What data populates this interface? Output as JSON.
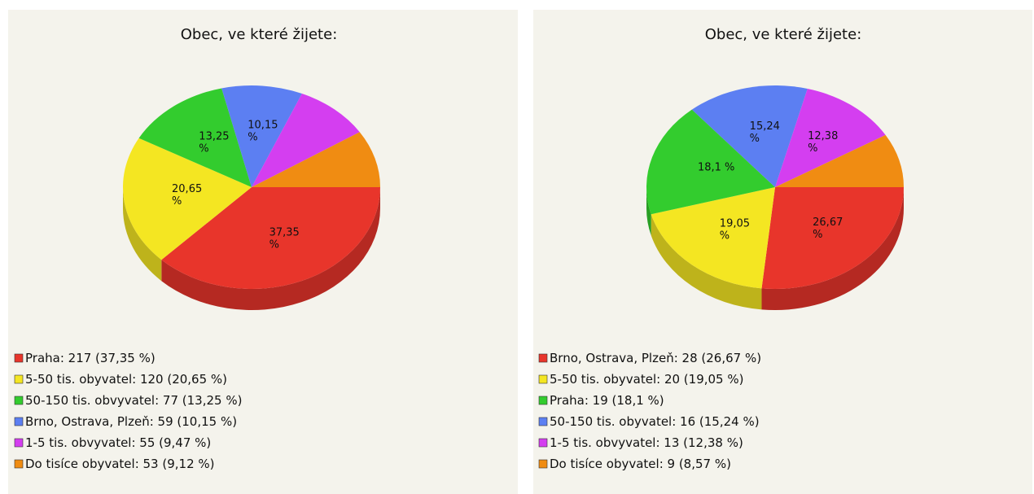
{
  "chart_data": [
    {
      "type": "pie",
      "title": "Obec, ve které žijete:",
      "categories": [
        "Praha",
        "5-50 tis. obyvatel",
        "50-150 tis. obvyvatel",
        "Brno, Ostrava, Plzeň",
        "1-5 tis. obvyvatel",
        "Do tisíce obyvatel"
      ],
      "values": [
        37.35,
        20.65,
        13.25,
        10.15,
        9.47,
        9.12
      ],
      "value_labels": [
        "37,35 %",
        "20,65 %",
        "13,25 %",
        "10,15 %",
        null,
        null
      ],
      "legend_labels": [
        "Praha: 217 (37,35 %)",
        "5-50 tis. obyvatel: 120 (20,65 %)",
        "50-150 tis. obvyvatel: 77 (13,25 %)",
        "Brno, Ostrava, Plzeň: 59 (10,15 %)",
        "1-5 tis. obvyvatel: 55 (9,47 %)",
        "Do tisíce obyvatel: 53 (9,12 %)"
      ],
      "colors": [
        "#e8352b",
        "#f4e622",
        "#33cc2e",
        "#5c7ff2",
        "#d43ef0",
        "#f08c12"
      ]
    },
    {
      "type": "pie",
      "title": "Obec, ve které žijete:",
      "categories": [
        "Brno, Ostrava, Plzeň",
        "5-50 tis. obyvatel",
        "Praha",
        "50-150 tis. obyvatel",
        "1-5 tis. obvyvatel",
        "Do tisíce obyvatel"
      ],
      "values": [
        26.67,
        19.05,
        18.1,
        15.24,
        12.38,
        8.57
      ],
      "value_labels": [
        "26,67 %",
        "19,05 %",
        "18,1 %",
        "15,24 %",
        "12,38 %",
        null
      ],
      "legend_labels": [
        "Brno, Ostrava, Plzeň: 28 (26,67 %)",
        "5-50 tis. obyvatel: 20 (19,05 %)",
        "Praha: 19 (18,1 %)",
        "50-150 tis. obyvatel: 16 (15,24 %)",
        "1-5 tis. obvyvatel: 13 (12,38 %)",
        "Do tisíce obyvatel: 9 (8,57 %)"
      ],
      "colors": [
        "#e8352b",
        "#f4e622",
        "#33cc2e",
        "#5c7ff2",
        "#d43ef0",
        "#f08c12"
      ]
    }
  ]
}
